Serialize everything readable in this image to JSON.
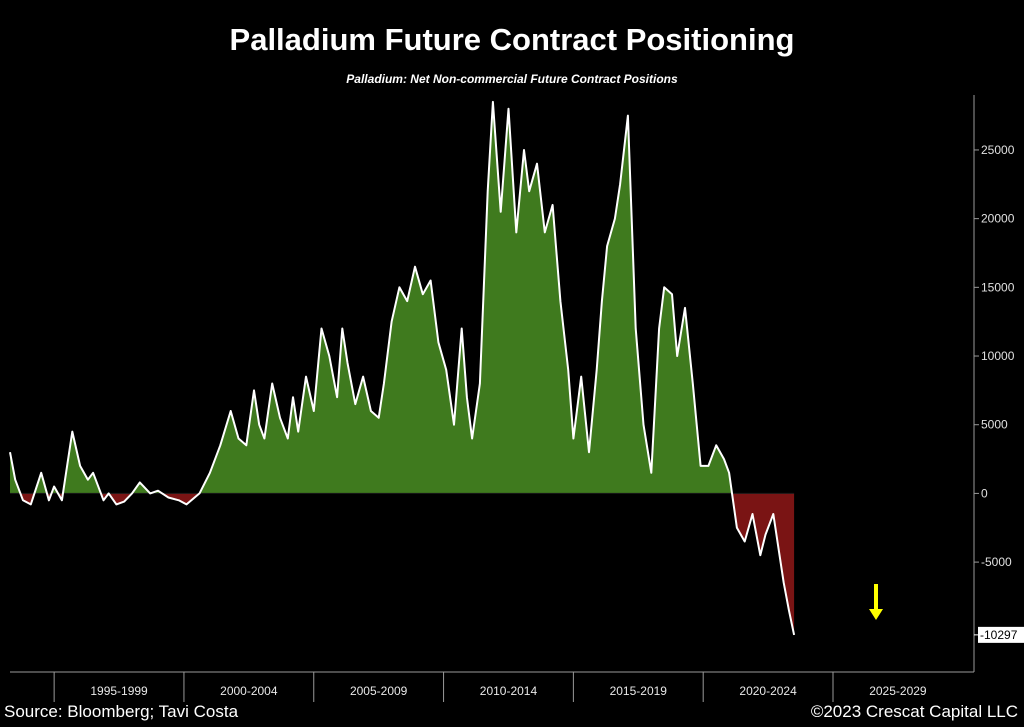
{
  "header": {
    "title": "Palladium Future Contract Positioning",
    "subtitle": "Palladium: Net Non-commercial Future Contract Positions"
  },
  "footer": {
    "source": "Source: Bloomberg; Tavi Costa",
    "copyright": "©2023 Crescat Capital LLC"
  },
  "colors": {
    "background": "#000000",
    "line": "#ffffff",
    "positive_fill": "#3f7a1e",
    "negative_fill": "#7a1414",
    "arrow": "#ffff00"
  },
  "chart_data": {
    "type": "area",
    "title": "Palladium Future Contract Positioning",
    "subtitle": "Palladium: Net Non-commercial Future Contract Positions",
    "xlabel": "",
    "ylabel": "",
    "xlim": [
      1993.3,
      2030.2
    ],
    "ylim": [
      -13000,
      29000
    ],
    "yticks": [
      25000,
      20000,
      15000,
      10000,
      5000,
      0,
      -5000
    ],
    "ytick_labels": [
      "25000",
      "20000",
      "15000",
      "10000",
      "5000",
      "0",
      "-5000"
    ],
    "period_labels": [
      {
        "label": "1995-1999",
        "start": 1995,
        "end": 2000
      },
      {
        "label": "2000-2004",
        "start": 2000,
        "end": 2005
      },
      {
        "label": "2005-2009",
        "start": 2005,
        "end": 2010
      },
      {
        "label": "2010-2014",
        "start": 2010,
        "end": 2015
      },
      {
        "label": "2015-2019",
        "start": 2015,
        "end": 2020
      },
      {
        "label": "2020-2024",
        "start": 2020,
        "end": 2025
      },
      {
        "label": "2025-2029",
        "start": 2025,
        "end": 2030
      }
    ],
    "last_value_label": "-10297",
    "last_value": -10297,
    "grid": false,
    "legend": "none",
    "annotation": "yellow downward arrow to the right of the latest value",
    "series": [
      {
        "x": [
          1993.3,
          1993.5,
          1993.8,
          1994.1,
          1994.5,
          1994.8,
          1995.0,
          1995.3,
          1995.7,
          1996.0,
          1996.3,
          1996.5,
          1996.9,
          1997.1,
          1997.4,
          1997.7,
          1998.0,
          1998.3,
          1998.7,
          1999.0,
          1999.4,
          1999.8,
          2000.1,
          2000.6,
          2001.0,
          2001.4,
          2001.8,
          2002.1,
          2002.4,
          2002.7,
          2002.9,
          2003.1,
          2003.4,
          2003.7,
          2004.0,
          2004.2,
          2004.4,
          2004.7,
          2005.0,
          2005.3,
          2005.6,
          2005.9,
          2006.1,
          2006.3,
          2006.6,
          2006.9,
          2007.2,
          2007.5,
          2007.7,
          2008.0,
          2008.3,
          2008.6,
          2008.9,
          2009.2,
          2009.5,
          2009.8,
          2010.1,
          2010.4,
          2010.7,
          2010.9,
          2011.1,
          2011.4,
          2011.7,
          2011.9,
          2012.2,
          2012.5,
          2012.8,
          2013.1,
          2013.3,
          2013.6,
          2013.9,
          2014.2,
          2014.5,
          2014.8,
          2015.0,
          2015.3,
          2015.6,
          2015.9,
          2016.1,
          2016.3,
          2016.6,
          2016.8,
          2017.1,
          2017.4,
          2017.7,
          2018.0,
          2018.1,
          2018.3,
          2018.5,
          2018.8,
          2019.0,
          2019.3,
          2019.6,
          2019.9,
          2020.2,
          2020.5,
          2020.8,
          2021.0,
          2021.3,
          2021.6,
          2021.9,
          2022.2,
          2022.4,
          2022.7,
          2022.9,
          2023.1,
          2023.3,
          2023.5
        ],
        "y": [
          3000,
          1000,
          -500,
          -800,
          1500,
          -500,
          500,
          -500,
          4500,
          2000,
          1000,
          1500,
          -500,
          0,
          -800,
          -600,
          0,
          800,
          0,
          200,
          -300,
          -500,
          -800,
          0,
          1500,
          3500,
          6000,
          4000,
          3500,
          7500,
          5000,
          4000,
          8000,
          5500,
          4000,
          7000,
          4500,
          8500,
          6000,
          12000,
          10000,
          7000,
          12000,
          9500,
          6500,
          8500,
          6000,
          5500,
          8000,
          12500,
          15000,
          14000,
          16500,
          14500,
          15500,
          11000,
          9000,
          5000,
          12000,
          7000,
          4000,
          8000,
          22000,
          28500,
          20500,
          28000,
          19000,
          25000,
          22000,
          24000,
          19000,
          21000,
          14000,
          9000,
          4000,
          8500,
          3000,
          9000,
          14000,
          18000,
          20000,
          22500,
          27500,
          12000,
          5000,
          1500,
          5000,
          12000,
          15000,
          14500,
          10000,
          13500,
          8000,
          2000,
          2000,
          3500,
          2500,
          1500,
          -2500,
          -3500,
          -1500,
          -4500,
          -3000,
          -1500,
          -4000,
          -6500,
          -8500,
          -10297
        ]
      }
    ]
  }
}
